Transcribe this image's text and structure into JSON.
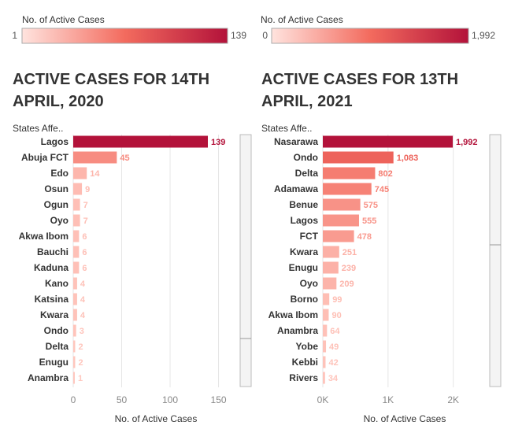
{
  "colors": {
    "low": "#ffc7be",
    "high": "#b3123a",
    "axis": "#888888",
    "grid": "#e6e6e6"
  },
  "chart_data": [
    {
      "type": "bar",
      "orientation": "horizontal",
      "legend": {
        "title": "No. of Active Cases",
        "min_label": "1",
        "max_label": "139",
        "min": 1,
        "max": 139
      },
      "title_line1": "ACTIVE CASES FOR 14TH",
      "title_line2": "APRIL, 2020",
      "category_header": "States Affe..",
      "xlabel": "No. of Active Cases",
      "xlim": [
        0,
        160
      ],
      "ticks": [
        0,
        50,
        100,
        150
      ],
      "tick_labels": [
        "0",
        "50",
        "100",
        "150"
      ],
      "categories": [
        "Lagos",
        "Abuja FCT",
        "Edo",
        "Osun",
        "Ogun",
        "Oyo",
        "Akwa Ibom",
        "Bauchi",
        "Kaduna",
        "Kano",
        "Katsina",
        "Kwara",
        "Ondo",
        "Delta",
        "Enugu",
        "Anambra"
      ],
      "values": [
        139,
        45,
        14,
        9,
        7,
        7,
        6,
        6,
        6,
        4,
        4,
        4,
        3,
        2,
        2,
        1
      ],
      "value_labels": [
        "139",
        "45",
        "14",
        "9",
        "7",
        "7",
        "6",
        "6",
        "6",
        "4",
        "4",
        "4",
        "3",
        "2",
        "2",
        "1"
      ]
    },
    {
      "type": "bar",
      "orientation": "horizontal",
      "legend": {
        "title": "No. of Active Cases",
        "min_label": "0",
        "max_label": "1,992",
        "min": 0,
        "max": 1992
      },
      "title_line1": "ACTIVE CASES FOR 13TH",
      "title_line2": "APRIL, 2021",
      "category_header": "States Affe..",
      "xlabel": "No. of Active Cases",
      "xlim": [
        0,
        2200
      ],
      "ticks": [
        0,
        1000,
        2000
      ],
      "tick_labels": [
        "0K",
        "1K",
        "2K"
      ],
      "categories": [
        "Nasarawa",
        "Ondo",
        "Delta",
        "Adamawa",
        "Benue",
        "Lagos",
        "FCT",
        "Kwara",
        "Enugu",
        "Oyo",
        "Borno",
        "Akwa Ibom",
        "Anambra",
        "Yobe",
        "Kebbi",
        "Rivers"
      ],
      "values": [
        1992,
        1083,
        802,
        745,
        575,
        555,
        478,
        251,
        239,
        209,
        99,
        90,
        64,
        49,
        42,
        34
      ],
      "value_labels": [
        "1,992",
        "1,083",
        "802",
        "745",
        "575",
        "555",
        "478",
        "251",
        "239",
        "209",
        "99",
        "90",
        "64",
        "49",
        "42",
        "34"
      ]
    }
  ]
}
